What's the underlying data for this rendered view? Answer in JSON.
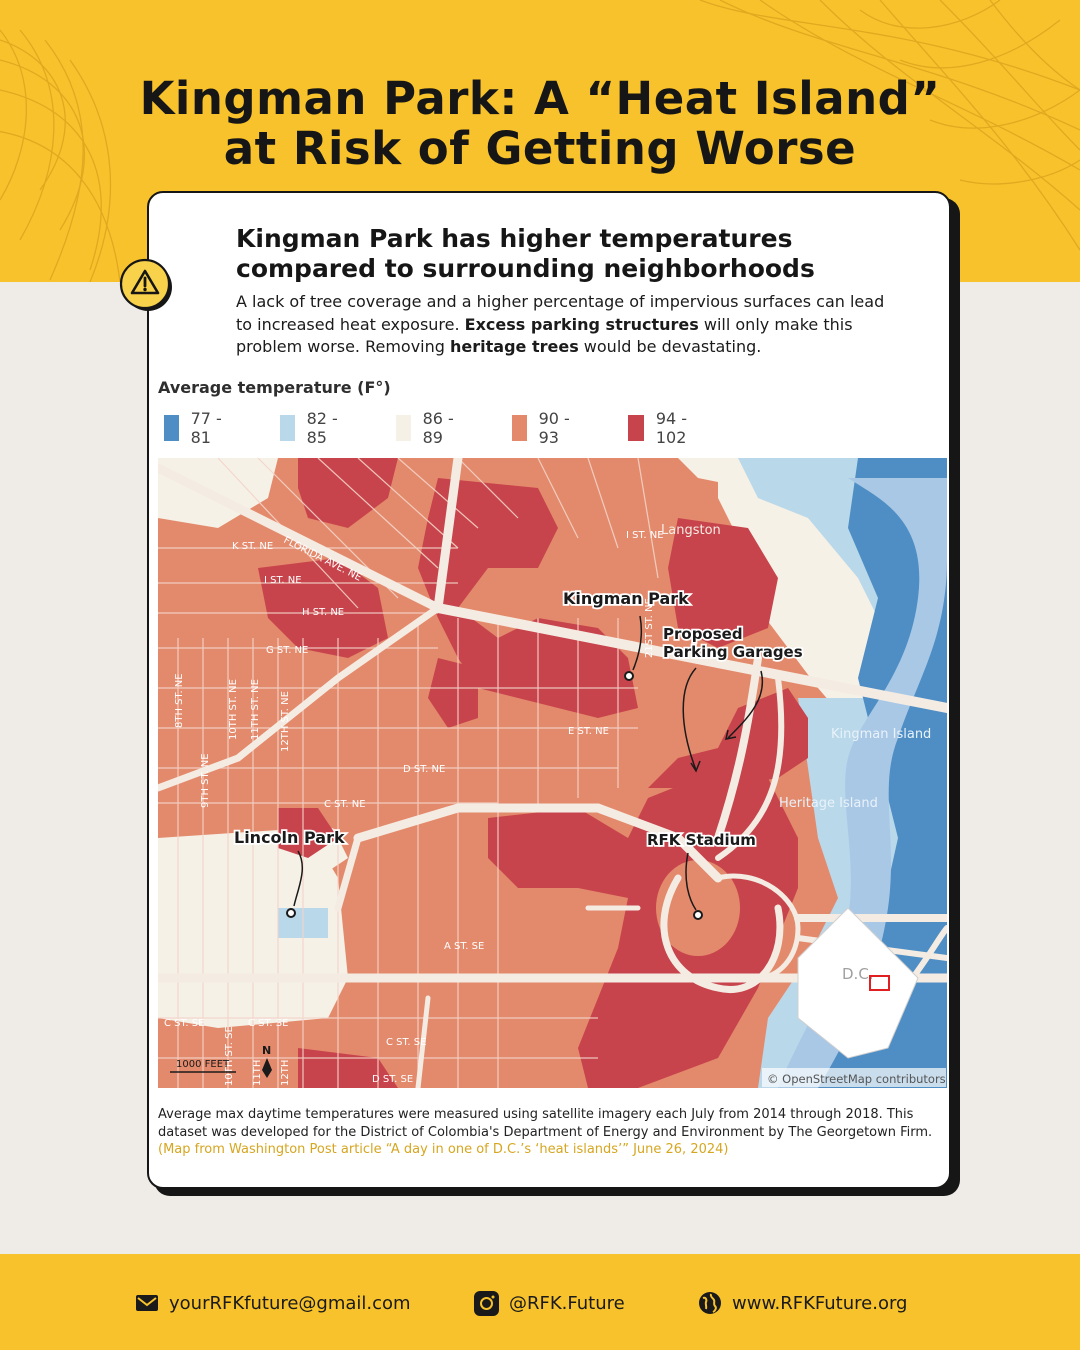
{
  "header": {
    "title_line1": "Kingman Park: A “Heat Island”",
    "title_line2": "at Risk of Getting Worse"
  },
  "card": {
    "warning_icon": "warning-triangle-icon",
    "heading_line1": "Kingman Park has higher temperatures",
    "heading_line2": "compared to surrounding neighborhoods",
    "intro_part1": "A lack of tree coverage and a higher percentage of impervious surfaces can lead to increased heat exposure. ",
    "intro_bold1": "Excess parking structures",
    "intro_part2": " will only make this problem worse. Removing ",
    "intro_bold2": "heritage trees",
    "intro_part3": " would be devastating."
  },
  "legend": {
    "title": "Average temperature (F°)",
    "items": [
      {
        "label": "77 - 81",
        "color": "#4f8ec4"
      },
      {
        "label": "82 - 85",
        "color": "#b9d8ea"
      },
      {
        "label": "86 - 89",
        "color": "#f6f1e7"
      },
      {
        "label": "90 - 93",
        "color": "#e48a6c"
      },
      {
        "label": "94 - 102",
        "color": "#c8444c"
      }
    ]
  },
  "map": {
    "callouts": {
      "kingman_park": "Kingman Park",
      "proposed_line1": "Proposed",
      "proposed_line2": "Parking Garages",
      "lincoln_park": "Lincoln Park",
      "rfk_stadium": "RFK Stadium"
    },
    "places": {
      "langston": "Langston",
      "kingman_island": "Kingman Island",
      "heritage_island": "Heritage Island",
      "dc": "D.C."
    },
    "streets": {
      "k_st": "K ST. NE",
      "florida_ave": "FLORIDA AVE. NE",
      "i_st": "I ST. NE",
      "h_st": "H ST. NE",
      "g_st": "G ST. NE",
      "e_st": "E ST. NE",
      "d_st": "D ST. NE",
      "c_st": "C ST. NE",
      "a_st_se": "A ST. SE",
      "c_st_se1": "C ST. SE",
      "c_st_se2": "C ST. SE",
      "c_st_se3": "C ST. SE",
      "d_st_se": "D ST. SE",
      "st_21": "21ST ST. NE",
      "st_8": "8TH ST. NE",
      "st_9": "9TH ST. NE",
      "st_10": "10TH ST. NE",
      "st_11": "11TH ST. NE",
      "st_12": "12TH ST. NE",
      "st_10_se": "10TH ST. SE",
      "st_11_se": "11TH",
      "st_12_se": "12TH",
      "i_st_east": "I ST. NE"
    },
    "scale_label": "1000 FEET",
    "north_label": "N",
    "attribution": "© OpenStreetMap contributors"
  },
  "caption": {
    "text": "Average max daytime temperatures were measured using satellite imagery each July from 2014 through 2018. This dataset was developed for the District of Colombia's Department of Energy and Environment by The Georgetown Firm.",
    "source": "(Map from Washington Post article “A day in one of D.C.’s ‘heat islands’” June 26, 2024)"
  },
  "footer": {
    "email": "yourRFKfuture@gmail.com",
    "instagram": "@RFK.Future",
    "website": "www.RFKFuture.org"
  }
}
